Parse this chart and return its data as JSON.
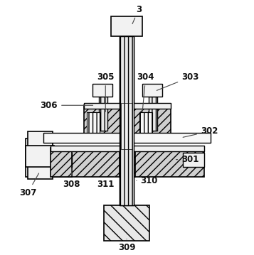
{
  "bg_color": "#ffffff",
  "lc": "#000000",
  "fc_hatch": "#d4d4d4",
  "fc_light": "#f0f0f0",
  "fc_white": "#ffffff",
  "fc_wave": "#e0e0e0"
}
